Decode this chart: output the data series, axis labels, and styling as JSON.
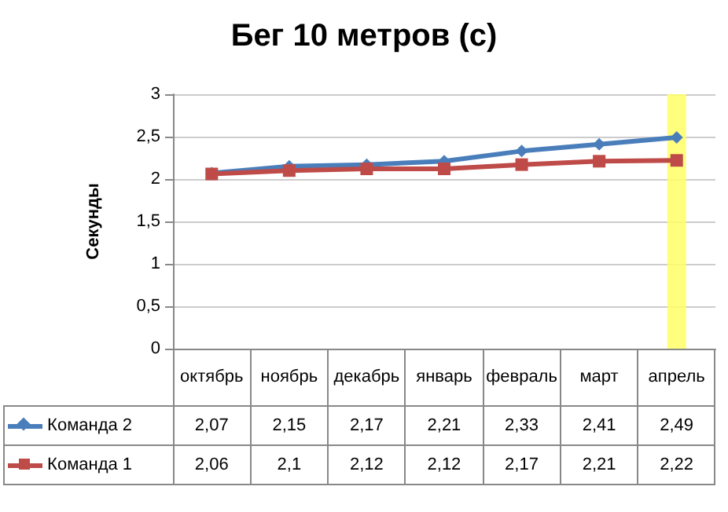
{
  "chart_data": {
    "type": "line",
    "title": "Бег 10 метров (с)",
    "ylabel": "Секунды",
    "categories": [
      "октябрь",
      "ноябрь",
      "декабрь",
      "январь",
      "февраль",
      "март",
      "апрель"
    ],
    "series": [
      {
        "name": "Команда 2",
        "color": "#4a7ebb",
        "marker": "diamond",
        "values": [
          2.07,
          2.15,
          2.17,
          2.21,
          2.33,
          2.41,
          2.49
        ],
        "value_labels": [
          "2,07",
          "2,15",
          "2,17",
          "2,21",
          "2,33",
          "2,41",
          "2,49"
        ]
      },
      {
        "name": "Команда 1",
        "color": "#be4b48",
        "marker": "square",
        "values": [
          2.06,
          2.1,
          2.12,
          2.12,
          2.17,
          2.21,
          2.22
        ],
        "value_labels": [
          "2,06",
          "2,1",
          "2,12",
          "2,12",
          "2,17",
          "2,21",
          "2,22"
        ]
      }
    ],
    "ylim": [
      0,
      3
    ],
    "yticks": [
      {
        "value": 0,
        "label": "0"
      },
      {
        "value": 0.5,
        "label": "0,5"
      },
      {
        "value": 1,
        "label": "1"
      },
      {
        "value": 1.5,
        "label": "1,5"
      },
      {
        "value": 2,
        "label": "2"
      },
      {
        "value": 2.5,
        "label": "2,5"
      },
      {
        "value": 3,
        "label": "3"
      }
    ],
    "bands": [
      {
        "axis": "x",
        "from": "апрель",
        "to": "апрель",
        "color": "#ffff66"
      }
    ],
    "grid": "y",
    "legend": "bottom",
    "line_style": "solid"
  }
}
